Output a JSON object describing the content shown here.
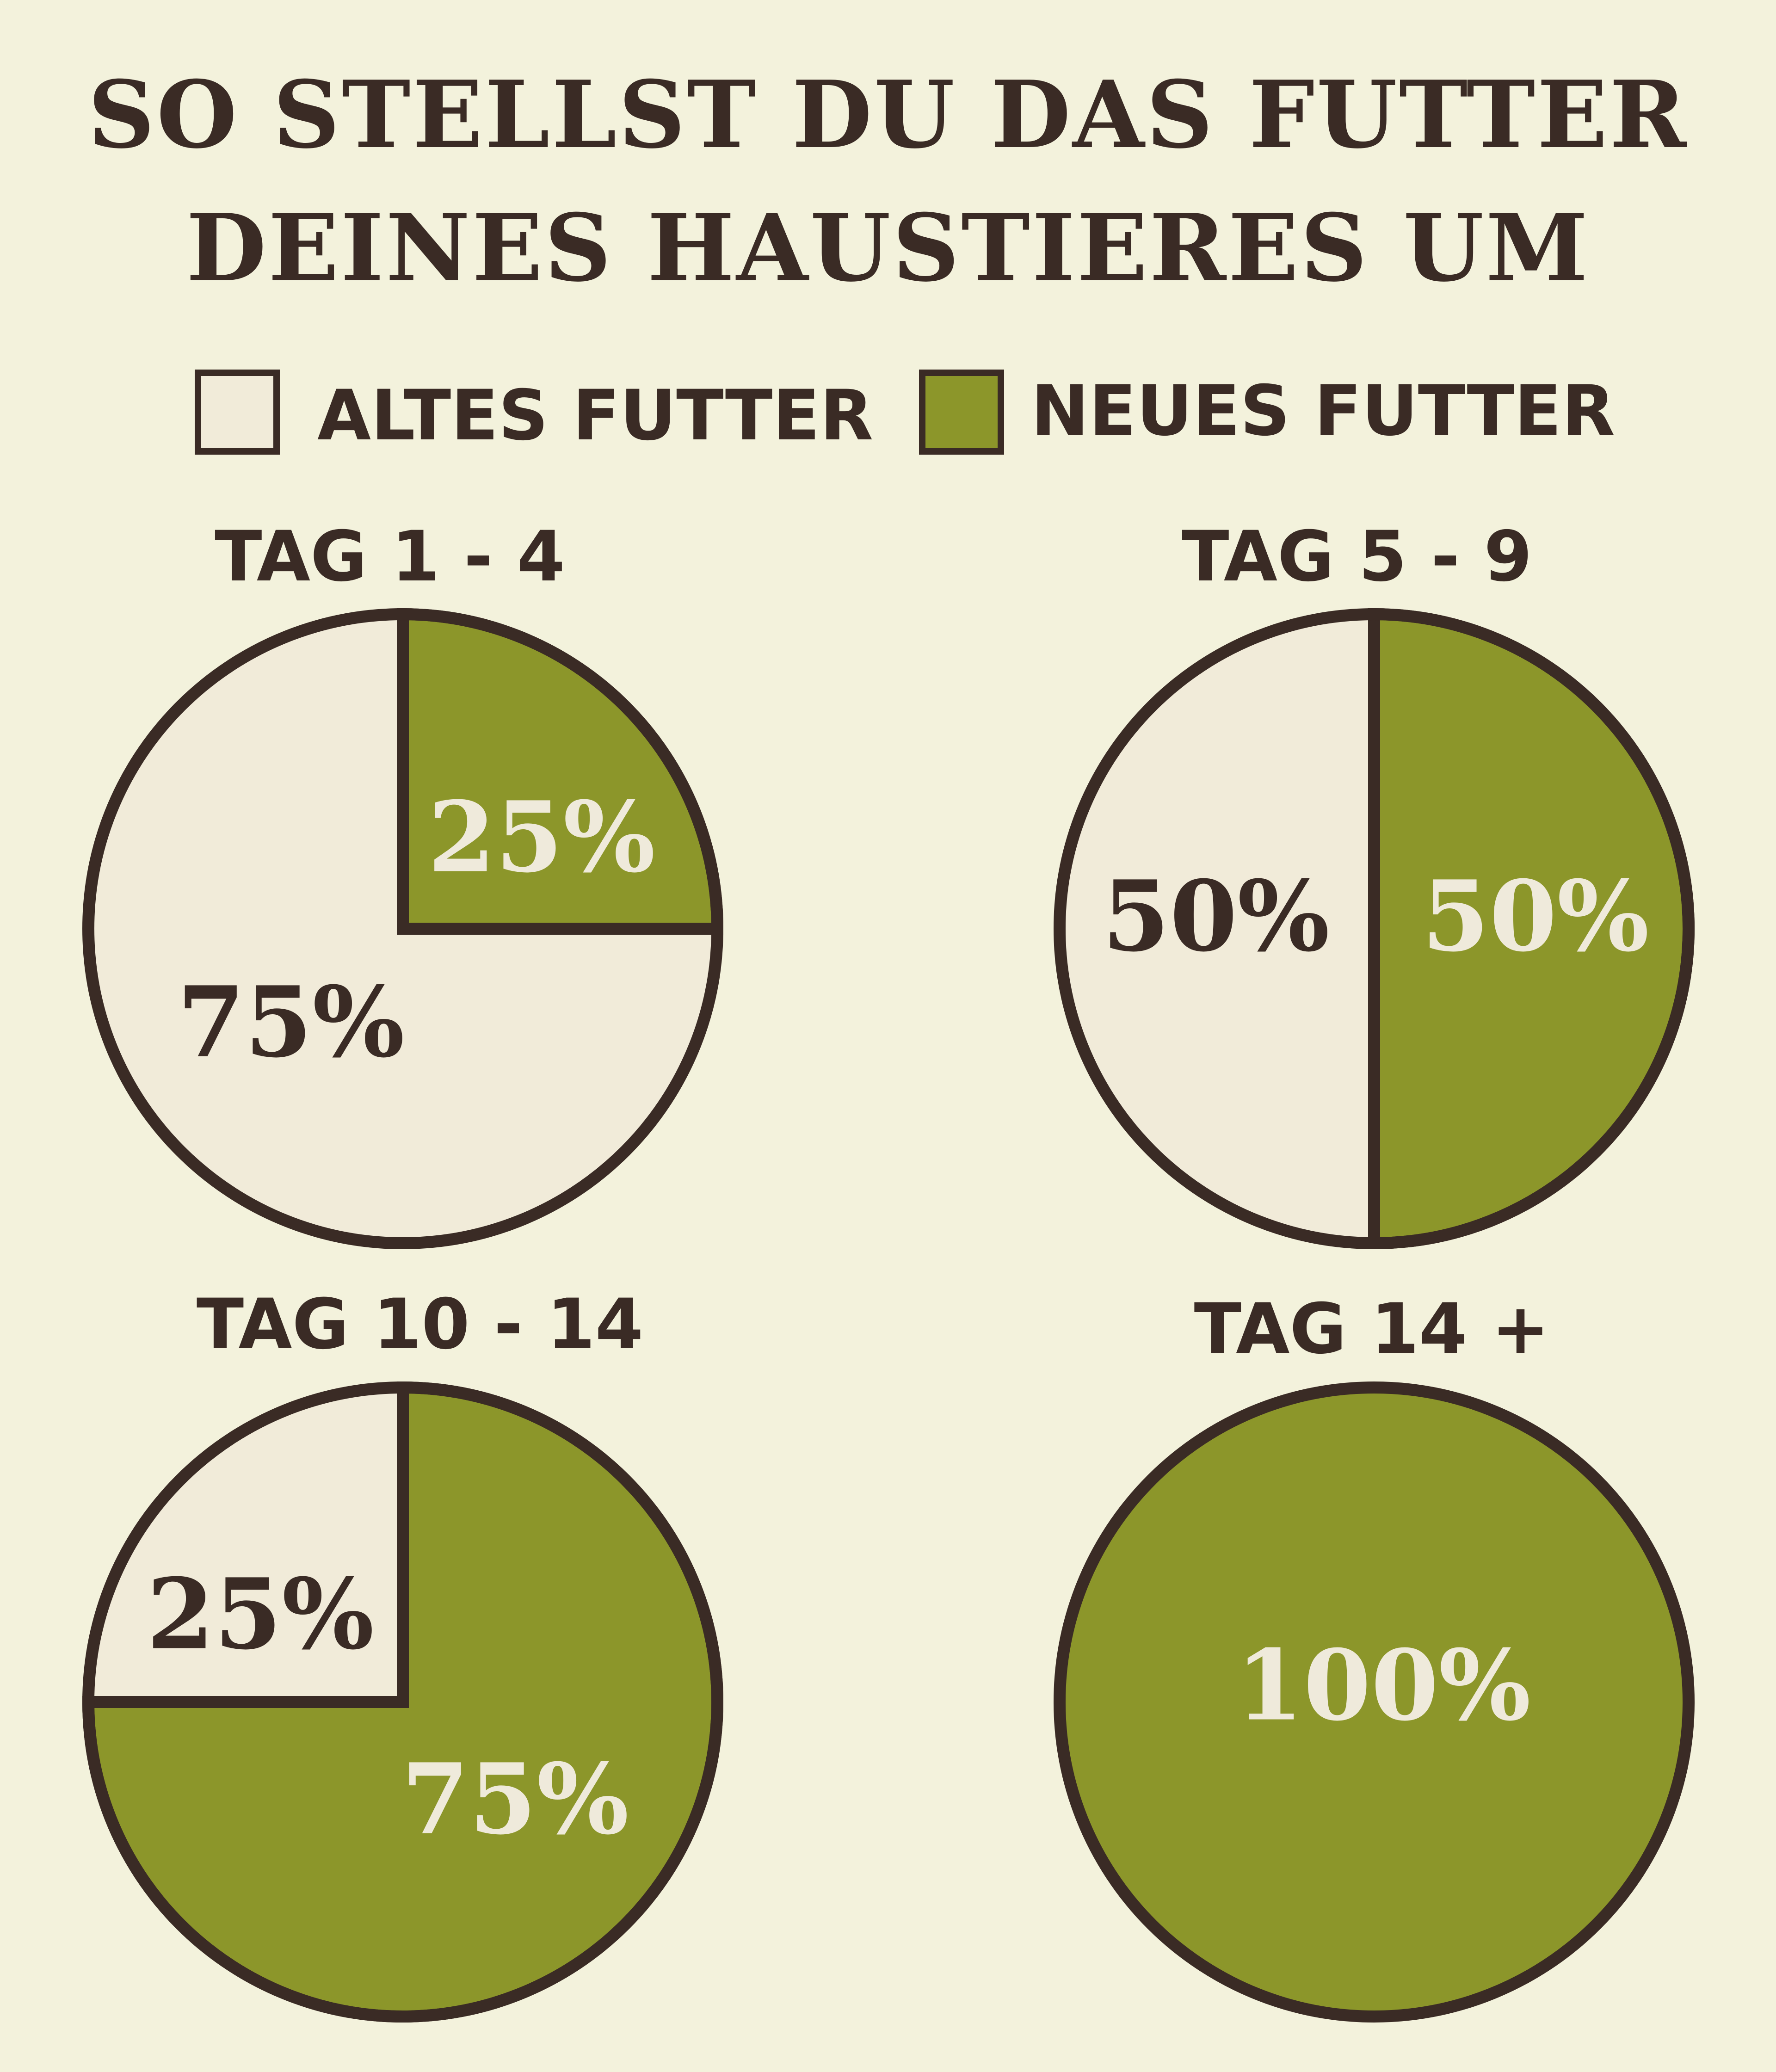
{
  "chart_data": {
    "type": "pie",
    "title": [
      "SO STELLST DU DAS FUTTER",
      "DEINES HAUSTIERES UM"
    ],
    "legend": [
      {
        "label": "ALTES FUTTER",
        "color": "#f1ebd9"
      },
      {
        "label": "NEUES FUTTER",
        "color": "#8c962a"
      }
    ],
    "legend_placement": "top",
    "pies": [
      {
        "label": "TAG 1 - 4",
        "altes": 75,
        "neues": 25,
        "altes_label": "75%",
        "neues_label": "25%"
      },
      {
        "label": "TAG 5 - 9",
        "altes": 50,
        "neues": 50,
        "altes_label": "50%",
        "neues_label": "50%"
      },
      {
        "label": "TAG 10 - 14",
        "altes": 25,
        "neues": 75,
        "altes_label": "25%",
        "neues_label": "75%"
      },
      {
        "label": "TAG 14 +",
        "altes": 0,
        "neues": 100,
        "neues_label": "100%"
      }
    ]
  },
  "colors": {
    "background": "#f3f2dc",
    "outline": "#3a2b25",
    "old": "#f1ebd9",
    "new": "#8c962a",
    "text_on_new": "#efeadb"
  }
}
